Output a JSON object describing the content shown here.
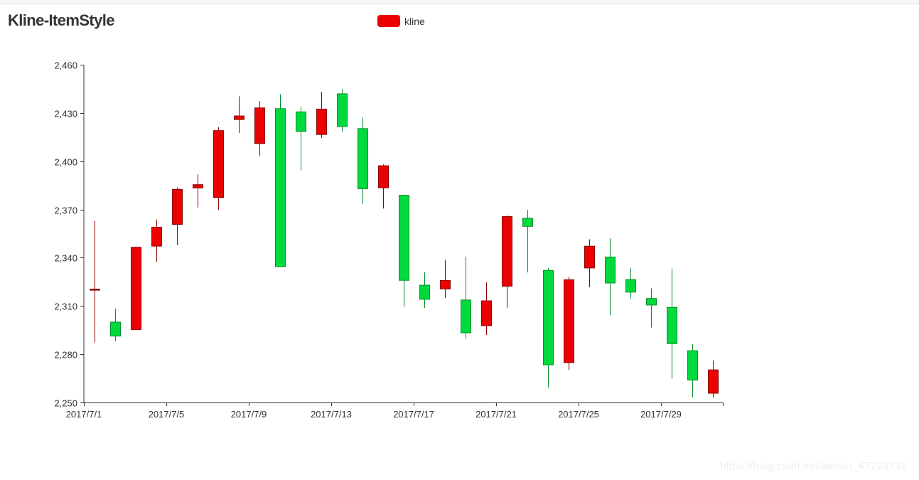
{
  "page": {
    "title": "Kline-ItemStyle",
    "legend": {
      "label": "kline",
      "color": "#ec0000"
    },
    "watermark": "https://blog.csdn.net/weixin_47723732"
  },
  "colors": {
    "up_fill": "#ec0000",
    "up_border": "#8a0000",
    "down_fill": "#00da3c",
    "down_border": "#008f28",
    "axis": "#333333"
  },
  "chart_data": {
    "type": "candlestick",
    "title": "Kline-ItemStyle",
    "xlabel": "",
    "ylabel": "",
    "ylim": [
      2250,
      2460
    ],
    "yticks": [
      2250,
      2280,
      2310,
      2340,
      2370,
      2400,
      2430,
      2460
    ],
    "ytick_labels": [
      "2,250",
      "2,280",
      "2,310",
      "2,340",
      "2,370",
      "2,400",
      "2,430",
      "2,460"
    ],
    "xtick_labels": [
      "2017/7/1",
      "2017/7/5",
      "2017/7/9",
      "2017/7/13",
      "2017/7/17",
      "2017/7/21",
      "2017/7/25",
      "2017/7/29"
    ],
    "grid": false,
    "legend_position": "top-center",
    "series": [
      {
        "name": "kline",
        "value_order": [
          "open",
          "close",
          "low",
          "high"
        ],
        "categories": [
          "2017/7/1",
          "2017/7/2",
          "2017/7/3",
          "2017/7/4",
          "2017/7/5",
          "2017/7/6",
          "2017/7/7",
          "2017/7/8",
          "2017/7/9",
          "2017/7/10",
          "2017/7/11",
          "2017/7/12",
          "2017/7/13",
          "2017/7/14",
          "2017/7/15",
          "2017/7/16",
          "2017/7/17",
          "2017/7/18",
          "2017/7/19",
          "2017/7/20",
          "2017/7/21",
          "2017/7/22",
          "2017/7/23",
          "2017/7/24",
          "2017/7/25",
          "2017/7/26",
          "2017/7/27",
          "2017/7/28",
          "2017/7/29",
          "2017/7/30",
          "2017/7/31"
        ],
        "values": [
          [
            2320.26,
            2320.26,
            2287.3,
            2362.94
          ],
          [
            2300,
            2291.3,
            2288.26,
            2308.38
          ],
          [
            2295.35,
            2346.5,
            2295.35,
            2345.92
          ],
          [
            2347.22,
            2358.98,
            2337.35,
            2363.8
          ],
          [
            2360.75,
            2382.48,
            2347.89,
            2383.76
          ],
          [
            2383.43,
            2385.42,
            2371.23,
            2391.82
          ],
          [
            2377.41,
            2419.02,
            2369.57,
            2421.15
          ],
          [
            2425.92,
            2428.15,
            2417.58,
            2440.38
          ],
          [
            2411,
            2433.13,
            2403.3,
            2437.42
          ],
          [
            2432.68,
            2334.48,
            2427.7,
            2441.73
          ],
          [
            2430.69,
            2418.53,
            2394.22,
            2433.89
          ],
          [
            2416.62,
            2432.4,
            2414.4,
            2443.03
          ],
          [
            2441.91,
            2421.56,
            2418.43,
            2444.8
          ],
          [
            2420.26,
            2382.91,
            2373.53,
            2427.07
          ],
          [
            2383.49,
            2397.18,
            2370.61,
            2397.94
          ],
          [
            2378.82,
            2325.95,
            2309.17,
            2378.82
          ],
          [
            2322.94,
            2314.16,
            2308.76,
            2330.88
          ],
          [
            2320.62,
            2325.82,
            2315.01,
            2338.78
          ],
          [
            2313.74,
            2293.34,
            2289.89,
            2340.71
          ],
          [
            2297.77,
            2313.22,
            2292.03,
            2324.63
          ],
          [
            2322.32,
            2365.59,
            2308.92,
            2366.16
          ],
          [
            2364.54,
            2359.51,
            2330.86,
            2369.65
          ],
          [
            2332.08,
            2273.4,
            2259.25,
            2333.54
          ],
          [
            2274.81,
            2326.31,
            2270.1,
            2328.14
          ],
          [
            2333.61,
            2347.18,
            2321.6,
            2351.44
          ],
          [
            2340.44,
            2324.29,
            2304.27,
            2352.02
          ],
          [
            2326.42,
            2318.61,
            2314.59,
            2333.67
          ],
          [
            2314.68,
            2310.59,
            2296.58,
            2320.96
          ],
          [
            2309.16,
            2286.6,
            2264.83,
            2333.29
          ],
          [
            2282.17,
            2263.97,
            2253.25,
            2286.33
          ],
          [
            2255.77,
            2270.28,
            2253.31,
            2276.22
          ]
        ]
      }
    ]
  }
}
